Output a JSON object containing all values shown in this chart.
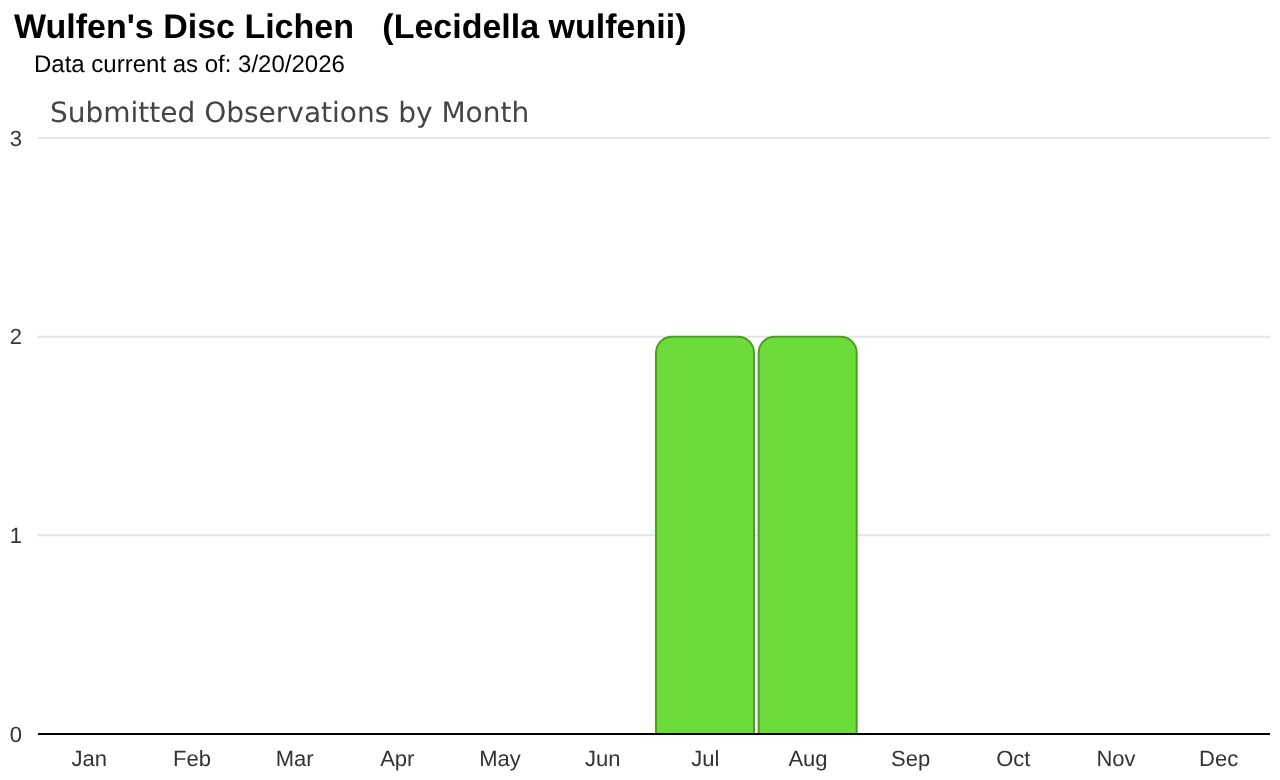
{
  "chart_data": {
    "type": "bar",
    "title": "Wulfen's Disc Lichen   (Lecidella wulfenii)",
    "subtitle": "Data current as of: 3/20/2026",
    "annotations": [
      "Submitted Observations by Month"
    ],
    "categories": [
      "Jan",
      "Feb",
      "Mar",
      "Apr",
      "May",
      "Jun",
      "Jul",
      "Aug",
      "Sep",
      "Oct",
      "Nov",
      "Dec"
    ],
    "values": [
      0,
      0,
      0,
      0,
      0,
      0,
      2,
      2,
      0,
      0,
      0,
      0
    ],
    "color": "#6ddc3a",
    "ylim": [
      0,
      3
    ],
    "yticks": [
      0,
      1,
      2,
      3
    ],
    "grid": "y"
  }
}
